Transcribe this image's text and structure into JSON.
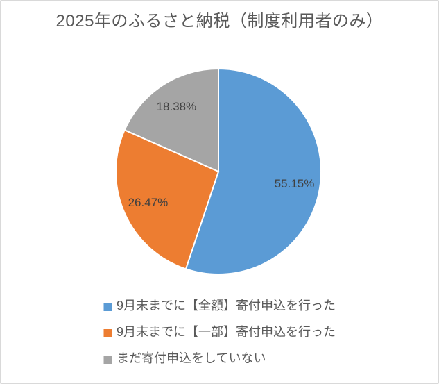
{
  "page": {
    "background": "#ffffff",
    "border_color": "#d9d9d9"
  },
  "chart_data": {
    "type": "pie",
    "title": "2025年のふるさと納税（制度利用者のみ）",
    "title_color": "#595959",
    "start_angle_deg": 0,
    "direction": "clockwise",
    "data_label_color": "#404040",
    "data_label_radius_ratio": 0.75,
    "slice_border_color": "#ffffff",
    "legend_position": "bottom",
    "segments": [
      {
        "label": "9月末までに【全額】寄付申込を行った",
        "value": 55.15,
        "display": "55.15%",
        "color": "#5B9BD5"
      },
      {
        "label": "9月末までに【一部】寄付申込を行った",
        "value": 26.47,
        "display": "26.47%",
        "color": "#ED7D31"
      },
      {
        "label": "まだ寄付申込をしていない",
        "value": 18.38,
        "display": "18.38%",
        "color": "#A5A5A5"
      }
    ]
  }
}
